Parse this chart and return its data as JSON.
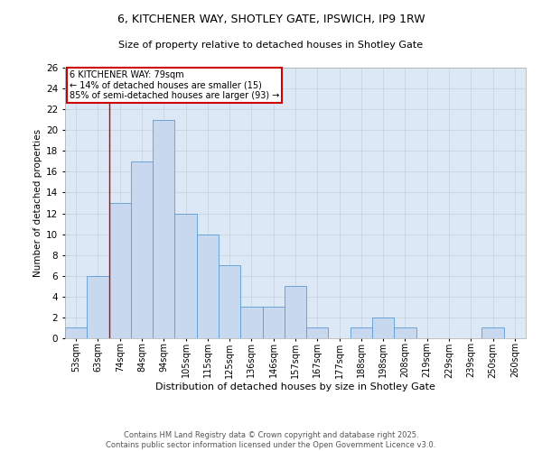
{
  "title_line1": "6, KITCHENER WAY, SHOTLEY GATE, IPSWICH, IP9 1RW",
  "title_line2": "Size of property relative to detached houses in Shotley Gate",
  "xlabel": "Distribution of detached houses by size in Shotley Gate",
  "ylabel": "Number of detached properties",
  "categories": [
    "53sqm",
    "63sqm",
    "74sqm",
    "84sqm",
    "94sqm",
    "105sqm",
    "115sqm",
    "125sqm",
    "136sqm",
    "146sqm",
    "157sqm",
    "167sqm",
    "177sqm",
    "188sqm",
    "198sqm",
    "208sqm",
    "219sqm",
    "229sqm",
    "239sqm",
    "250sqm",
    "260sqm"
  ],
  "values": [
    1,
    6,
    13,
    17,
    21,
    12,
    10,
    7,
    3,
    3,
    5,
    1,
    0,
    1,
    2,
    1,
    0,
    0,
    0,
    1,
    0
  ],
  "bar_color": "#c8d8ee",
  "bar_edge_color": "#5b9bd5",
  "annotation_box_color": "#ffffff",
  "annotation_box_edge_color": "#cc0000",
  "vline_color": "#cc0000",
  "vline_x_bin": 1.5,
  "ylim": [
    0,
    26
  ],
  "yticks": [
    0,
    2,
    4,
    6,
    8,
    10,
    12,
    14,
    16,
    18,
    20,
    22,
    24,
    26
  ],
  "grid_color": "#c8d4e0",
  "background_color": "#dce8f5",
  "footer_text": "Contains HM Land Registry data © Crown copyright and database right 2025.\nContains public sector information licensed under the Open Government Licence v3.0.",
  "property_line_label": "6 KITCHENER WAY: 79sqm",
  "annotation_text_line1": "← 14% of detached houses are smaller (15)",
  "annotation_text_line2": "85% of semi-detached houses are larger (93) →"
}
